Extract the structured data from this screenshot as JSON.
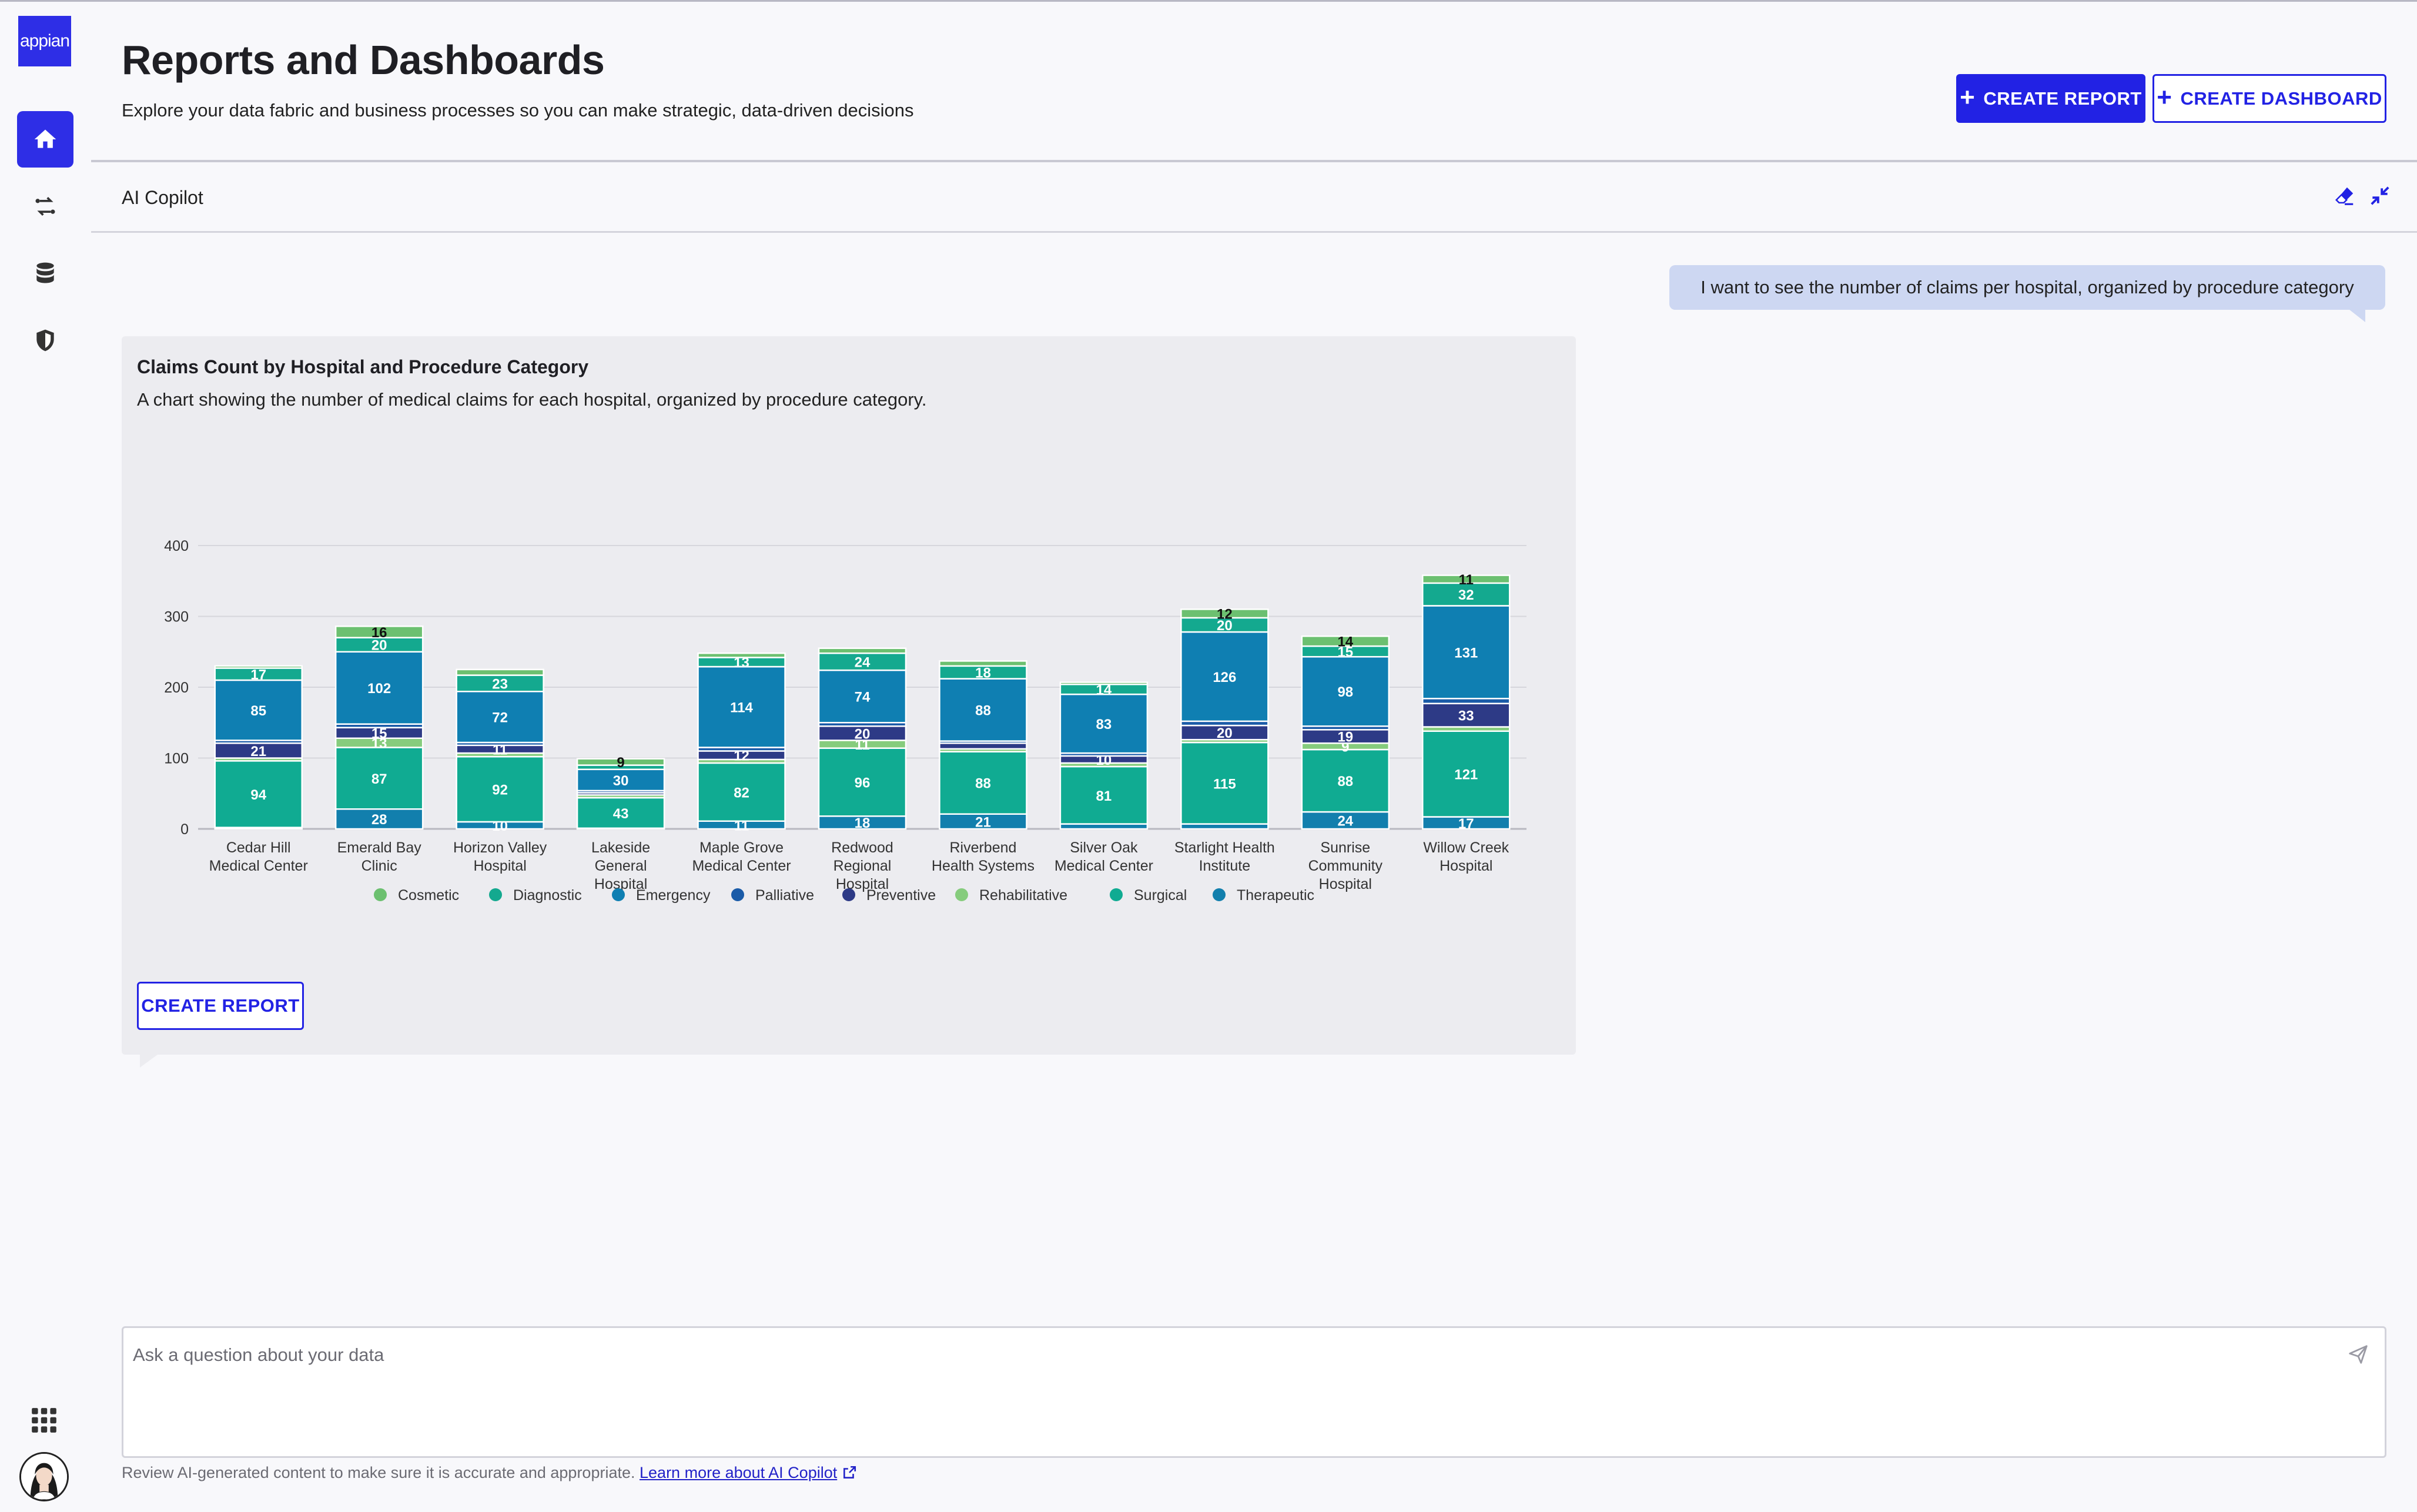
{
  "app": {
    "logo_text": "appian"
  },
  "header": {
    "title": "Reports and Dashboards",
    "subtitle": "Explore your data fabric and business processes so you can make strategic, data-driven decisions",
    "create_report_label": "CREATE REPORT",
    "create_dashboard_label": "CREATE DASHBOARD"
  },
  "copilot": {
    "label": "AI Copilot"
  },
  "conversation": {
    "user_message": "I want to see the number of claims per hospital, organized by procedure category",
    "response": {
      "title": "Claims Count by Hospital and Procedure Category",
      "description": "A chart showing the number of medical claims for each hospital, organized by procedure category.",
      "create_report_label": "CREATE REPORT"
    }
  },
  "input": {
    "placeholder": "Ask a question about your data"
  },
  "footer": {
    "note": "Review AI-generated content to make sure it is accurate and appropriate.",
    "link_label": "Learn more about AI Copilot"
  },
  "colors": {
    "brand": "#2222e4",
    "Cosmetic": "#6cc070",
    "Diagnostic": "#14a98f",
    "Emergency": "#0f7fb2",
    "Palliative": "#1a5ba8",
    "Preventive": "#2d3a86",
    "Rehabilitative": "#86cc7d",
    "Surgical": "#10ab92",
    "Therapeutic": "#127fad"
  },
  "chart_data": {
    "type": "bar",
    "stacked": true,
    "title": "Claims Count by Hospital and Procedure Category",
    "ylim": [
      0,
      400
    ],
    "yticks": [
      0,
      100,
      200,
      300,
      400
    ],
    "grid": true,
    "legend_position": "bottom",
    "categories": [
      "Cedar Hill Medical Center",
      "Emerald Bay Clinic",
      "Horizon Valley Hospital",
      "Lakeside General Hospital",
      "Maple Grove Medical Center",
      "Redwood Regional Hospital",
      "Riverbend Health Systems",
      "Silver Oak Medical Center",
      "Starlight Health Institute",
      "Sunrise Community Hospital",
      "Willow Creek Hospital"
    ],
    "category_lines": [
      [
        "Cedar Hill",
        "Medical Center"
      ],
      [
        "Emerald Bay",
        "Clinic"
      ],
      [
        "Horizon Valley",
        "Hospital"
      ],
      [
        "Lakeside",
        "General",
        "Hospital"
      ],
      [
        "Maple Grove",
        "Medical Center"
      ],
      [
        "Redwood",
        "Regional",
        "Hospital"
      ],
      [
        "Riverbend",
        "Health Systems"
      ],
      [
        "Silver Oak",
        "Medical Center"
      ],
      [
        "Starlight Health",
        "Institute"
      ],
      [
        "Sunrise",
        "Community",
        "Hospital"
      ],
      [
        "Willow Creek",
        "Hospital"
      ]
    ],
    "series": [
      {
        "name": "Therapeutic",
        "values": [
          2,
          28,
          10,
          1,
          11,
          18,
          21,
          7,
          7,
          24,
          17
        ]
      },
      {
        "name": "Surgical",
        "values": [
          94,
          87,
          92,
          43,
          82,
          96,
          88,
          81,
          115,
          88,
          121
        ]
      },
      {
        "name": "Rehabilitative",
        "values": [
          4,
          13,
          5,
          4,
          5,
          11,
          4,
          5,
          4,
          9,
          6
        ]
      },
      {
        "name": "Preventive",
        "values": [
          21,
          15,
          11,
          3,
          12,
          20,
          8,
          10,
          20,
          19,
          33
        ]
      },
      {
        "name": "Palliative",
        "values": [
          4,
          5,
          4,
          3,
          5,
          5,
          3,
          4,
          6,
          5,
          7
        ]
      },
      {
        "name": "Emergency",
        "values": [
          85,
          102,
          72,
          30,
          114,
          74,
          88,
          83,
          126,
          98,
          131
        ]
      },
      {
        "name": "Diagnostic",
        "values": [
          17,
          20,
          23,
          6,
          13,
          24,
          18,
          14,
          20,
          15,
          32
        ]
      },
      {
        "name": "Cosmetic",
        "values": [
          3,
          16,
          8,
          9,
          6,
          7,
          7,
          3,
          12,
          14,
          11
        ]
      }
    ],
    "legend_order": [
      "Cosmetic",
      "Diagnostic",
      "Emergency",
      "Palliative",
      "Preventive",
      "Rehabilitative",
      "Surgical",
      "Therapeutic"
    ]
  }
}
